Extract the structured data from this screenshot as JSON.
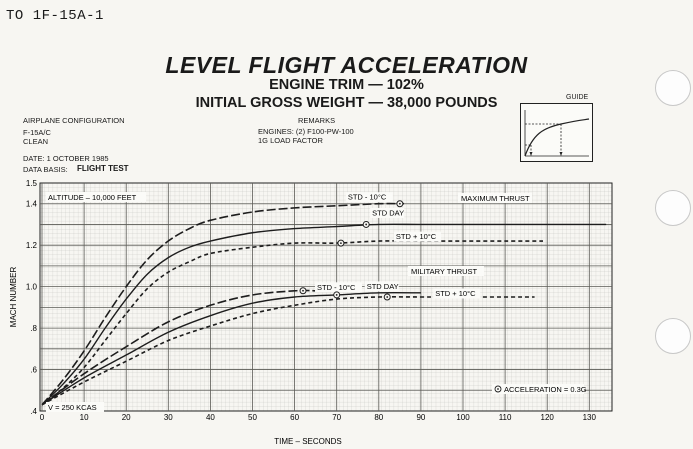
{
  "header": {
    "doc_id": "TO 1F-15A-1",
    "title": "LEVEL FLIGHT ACCELERATION",
    "subtitle1": "ENGINE TRIM — 102%",
    "subtitle2": "INITIAL GROSS WEIGHT — 38,000 POUNDS"
  },
  "info": {
    "config_heading": "AIRPLANE CONFIGURATION",
    "config_line1": "F-15A/C",
    "config_line2": "CLEAN",
    "remarks_heading": "REMARKS",
    "remarks_line1": "ENGINES: (2) F100-PW-100",
    "remarks_line2": "1G LOAD FACTOR",
    "date_line": "DATE:  1 OCTOBER 1985",
    "data_basis_label": "DATA BASIS:",
    "data_basis_value": "FLIGHT TEST",
    "guide_label": "GUIDE"
  },
  "chart_data": {
    "type": "line",
    "xlabel": "TIME – SECONDS",
    "ylabel": "MACH NUMBER",
    "xlim": [
      0,
      135
    ],
    "ylim": [
      0.4,
      1.5
    ],
    "x_ticks": [
      0,
      10,
      20,
      30,
      40,
      50,
      60,
      70,
      80,
      90,
      100,
      110,
      120,
      130
    ],
    "y_ticks": [
      {
        "value": 0.4,
        "label": ".4"
      },
      {
        "value": 0.6,
        "label": ".6"
      },
      {
        "value": 0.8,
        "label": ".8"
      },
      {
        "value": 1.0,
        "label": "1.0"
      },
      {
        "value": 1.2,
        "label": "1.2"
      },
      {
        "value": 1.4,
        "label": "1.4"
      },
      {
        "value": 1.5,
        "label": "1.5"
      }
    ],
    "grid": true,
    "annotations": {
      "altitude": "ALTITUDE – 10,000 FEET",
      "initial_speed": "V = 250 KCAS",
      "max_thrust": "MAXIMUM THRUST",
      "mil_thrust": "MILITARY THRUST",
      "acceleration": "ACCELERATION = 0.3G"
    },
    "series": [
      {
        "name": "STD - 10°C",
        "group": "max",
        "style": "longdash",
        "x": [
          0,
          5,
          10,
          15,
          20,
          25,
          30,
          35,
          40,
          50,
          60,
          70,
          80,
          86
        ],
        "y": [
          0.43,
          0.55,
          0.69,
          0.85,
          1.0,
          1.13,
          1.22,
          1.28,
          1.32,
          1.36,
          1.38,
          1.39,
          1.4,
          1.4
        ],
        "marker_x": 85,
        "marker_y": 1.4
      },
      {
        "name": "STD DAY",
        "group": "max",
        "style": "solid",
        "x": [
          0,
          5,
          10,
          15,
          20,
          25,
          30,
          35,
          40,
          50,
          60,
          70,
          80,
          90,
          100,
          110,
          120,
          134
        ],
        "y": [
          0.43,
          0.53,
          0.65,
          0.8,
          0.94,
          1.06,
          1.14,
          1.19,
          1.22,
          1.26,
          1.28,
          1.29,
          1.3,
          1.3,
          1.3,
          1.3,
          1.3,
          1.3
        ],
        "marker_x": 77,
        "marker_y": 1.3
      },
      {
        "name": "STD + 10°C",
        "group": "max",
        "style": "shortdash",
        "x": [
          0,
          5,
          10,
          15,
          20,
          25,
          30,
          35,
          40,
          50,
          60,
          70,
          80,
          90,
          100,
          110,
          119
        ],
        "y": [
          0.43,
          0.51,
          0.61,
          0.74,
          0.87,
          0.99,
          1.07,
          1.12,
          1.16,
          1.19,
          1.21,
          1.21,
          1.22,
          1.22,
          1.22,
          1.22,
          1.22
        ],
        "marker_x": 71,
        "marker_y": 1.21
      },
      {
        "name": "STD - 10°C",
        "group": "mil",
        "style": "longdash",
        "x": [
          0,
          10,
          20,
          30,
          40,
          50,
          60,
          65
        ],
        "y": [
          0.43,
          0.58,
          0.71,
          0.83,
          0.91,
          0.96,
          0.98,
          0.98
        ],
        "marker_x": 62,
        "marker_y": 0.98
      },
      {
        "name": "STD DAY",
        "group": "mil",
        "style": "solid",
        "x": [
          0,
          10,
          20,
          30,
          40,
          50,
          60,
          70,
          80,
          90
        ],
        "y": [
          0.43,
          0.56,
          0.67,
          0.78,
          0.86,
          0.92,
          0.95,
          0.96,
          0.97,
          0.97
        ],
        "marker_x": 70,
        "marker_y": 0.96
      },
      {
        "name": "STD + 10°C",
        "group": "mil",
        "style": "shortdash",
        "x": [
          0,
          10,
          20,
          30,
          40,
          50,
          60,
          70,
          80,
          90,
          100,
          117
        ],
        "y": [
          0.43,
          0.54,
          0.64,
          0.74,
          0.81,
          0.87,
          0.91,
          0.94,
          0.95,
          0.95,
          0.95,
          0.95
        ],
        "marker_x": 82,
        "marker_y": 0.95
      }
    ]
  }
}
